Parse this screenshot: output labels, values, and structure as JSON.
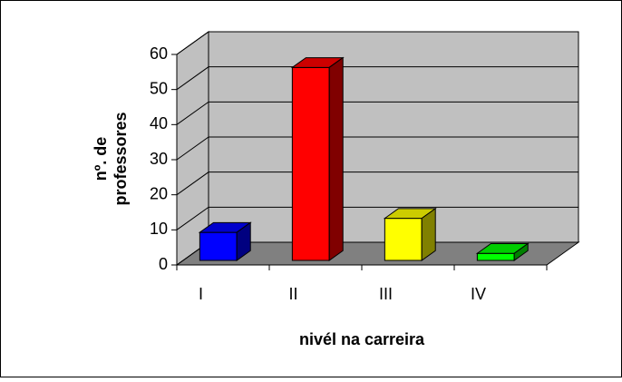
{
  "chart_data": {
    "type": "bar3d",
    "xlabel": "nivél na carreira",
    "ylabel": [
      "nº. de",
      "professores"
    ],
    "categories": [
      "I",
      "II",
      "III",
      "IV"
    ],
    "values": [
      8,
      55,
      12,
      2
    ],
    "colors": [
      "#0000ff",
      "#ff0000",
      "#ffff00",
      "#00ff00"
    ],
    "ylim": [
      0,
      60
    ],
    "yticks": [
      0,
      10,
      20,
      30,
      40,
      50,
      60
    ],
    "grid": true
  }
}
